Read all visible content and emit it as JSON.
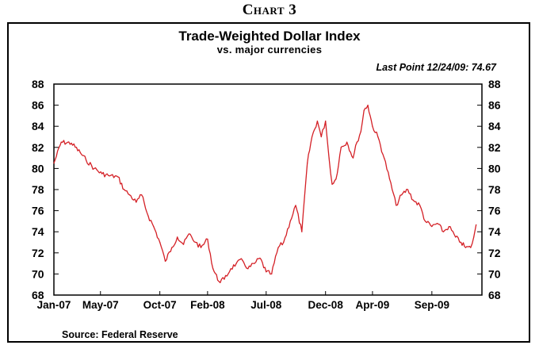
{
  "caption": "Chart 3",
  "source": "Source: Federal Reserve",
  "chart_data": {
    "type": "line",
    "title": "Trade-Weighted Dollar Index",
    "subtitle": "vs. major currencies",
    "annotation": "Last Point 12/24/09: 74.67",
    "xlabel": "",
    "ylabel": "",
    "ylim": [
      68,
      88
    ],
    "yticks": [
      68,
      70,
      72,
      74,
      76,
      78,
      80,
      82,
      84,
      86,
      88
    ],
    "dual_y_axis": true,
    "grid": false,
    "xtick_labels": [
      "Jan-07",
      "May-07",
      "Oct-07",
      "Feb-08",
      "Jul-08",
      "Dec-08",
      "Apr-09",
      "Sep-09"
    ],
    "xtick_dates": [
      "2007-01-01",
      "2007-05-01",
      "2007-10-01",
      "2008-02-01",
      "2008-07-01",
      "2008-12-01",
      "2009-04-01",
      "2009-09-01"
    ],
    "xlim": [
      "2007-01-01",
      "2010-01-08"
    ],
    "line_color": "#d42026",
    "series": [
      {
        "x": [
          "2007-01-01",
          "2007-01-20",
          "2007-02-15",
          "2007-03-10",
          "2007-03-25",
          "2007-04-15",
          "2007-05-05",
          "2007-05-25",
          "2007-06-15",
          "2007-07-01",
          "2007-07-15",
          "2007-08-01",
          "2007-08-15",
          "2007-09-01",
          "2007-09-15",
          "2007-10-01",
          "2007-10-15",
          "2007-11-01",
          "2007-11-15",
          "2007-12-01",
          "2007-12-15",
          "2008-01-01",
          "2008-01-15",
          "2008-02-01",
          "2008-02-15",
          "2008-03-01",
          "2008-03-15",
          "2008-04-01",
          "2008-04-15",
          "2008-05-01",
          "2008-05-15",
          "2008-06-01",
          "2008-06-15",
          "2008-07-01",
          "2008-07-15",
          "2008-08-01",
          "2008-08-15",
          "2008-09-01",
          "2008-09-15",
          "2008-10-01",
          "2008-10-15",
          "2008-10-27",
          "2008-11-10",
          "2008-11-20",
          "2008-12-01",
          "2008-12-10",
          "2008-12-18",
          "2008-12-28",
          "2009-01-10",
          "2009-01-25",
          "2009-02-10",
          "2009-02-20",
          "2009-03-02",
          "2009-03-10",
          "2009-03-20",
          "2009-04-01",
          "2009-04-15",
          "2009-05-01",
          "2009-05-15",
          "2009-06-01",
          "2009-06-15",
          "2009-07-01",
          "2009-07-15",
          "2009-08-01",
          "2009-08-15",
          "2009-09-01",
          "2009-09-15",
          "2009-10-01",
          "2009-10-15",
          "2009-11-01",
          "2009-11-15",
          "2009-11-27",
          "2009-12-10",
          "2009-12-18",
          "2009-12-24"
        ],
        "y": [
          80.5,
          82.5,
          82.4,
          81.5,
          80.8,
          80.0,
          79.5,
          79.3,
          79.2,
          78.0,
          77.5,
          76.8,
          77.5,
          75.5,
          74.5,
          73.0,
          71.2,
          72.5,
          73.5,
          72.8,
          73.8,
          73.0,
          72.5,
          73.3,
          70.5,
          69.3,
          69.5,
          70.5,
          71.0,
          71.3,
          70.5,
          71.0,
          71.5,
          70.2,
          70.0,
          72.5,
          73.0,
          75.0,
          76.5,
          74.0,
          80.5,
          83.0,
          84.5,
          83.0,
          84.5,
          81.0,
          78.5,
          79.0,
          82.0,
          82.5,
          81.0,
          82.5,
          83.5,
          85.5,
          86.0,
          84.0,
          83.0,
          81.0,
          79.0,
          76.5,
          77.5,
          78.0,
          77.0,
          76.5,
          75.0,
          74.5,
          74.8,
          74.0,
          74.5,
          73.5,
          73.0,
          72.5,
          72.5,
          73.5,
          74.67
        ]
      }
    ]
  }
}
